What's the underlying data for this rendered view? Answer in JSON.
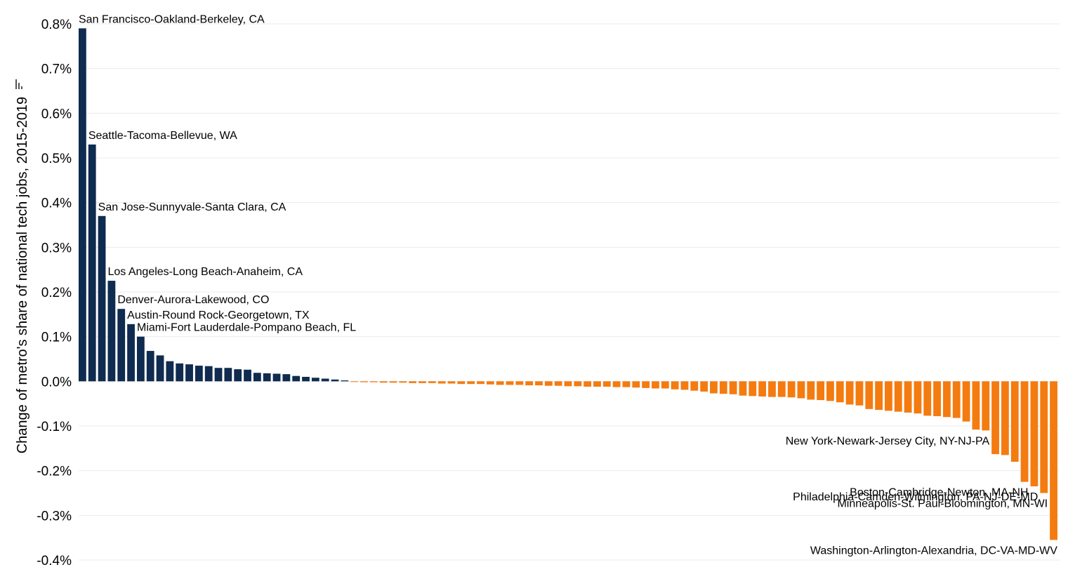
{
  "chart_data": {
    "type": "bar",
    "ylabel": "Change of metro's share of national tech jobs, 2015-2019",
    "ylim": [
      -0.4,
      0.8
    ],
    "y_ticks": [
      0.8,
      0.7,
      0.6,
      0.5,
      0.4,
      0.3,
      0.2,
      0.1,
      0.0,
      -0.1,
      -0.2,
      -0.3,
      -0.4
    ],
    "y_tick_labels": [
      "0.8%",
      "0.7%",
      "0.6%",
      "0.5%",
      "0.4%",
      "0.3%",
      "0.2%",
      "0.1%",
      "0.0%",
      "-0.1%",
      "-0.2%",
      "-0.3%",
      "-0.4%"
    ],
    "grid": true,
    "colors": {
      "positive": "#0f2b4f",
      "negative": "#f47b10",
      "grid": "#ebebeb"
    },
    "values": [
      0.79,
      0.53,
      0.37,
      0.225,
      0.162,
      0.128,
      0.1,
      0.068,
      0.058,
      0.045,
      0.04,
      0.038,
      0.035,
      0.034,
      0.03,
      0.03,
      0.027,
      0.026,
      0.019,
      0.018,
      0.017,
      0.016,
      0.012,
      0.01,
      0.008,
      0.006,
      0.004,
      0.002,
      -0.001,
      -0.002,
      -0.002,
      -0.003,
      -0.003,
      -0.003,
      -0.004,
      -0.004,
      -0.004,
      -0.005,
      -0.005,
      -0.006,
      -0.006,
      -0.006,
      -0.007,
      -0.008,
      -0.008,
      -0.008,
      -0.009,
      -0.009,
      -0.01,
      -0.01,
      -0.011,
      -0.011,
      -0.012,
      -0.012,
      -0.012,
      -0.013,
      -0.013,
      -0.014,
      -0.015,
      -0.016,
      -0.016,
      -0.018,
      -0.019,
      -0.021,
      -0.023,
      -0.027,
      -0.028,
      -0.029,
      -0.032,
      -0.033,
      -0.034,
      -0.035,
      -0.035,
      -0.036,
      -0.038,
      -0.041,
      -0.042,
      -0.044,
      -0.047,
      -0.052,
      -0.054,
      -0.062,
      -0.064,
      -0.066,
      -0.068,
      -0.07,
      -0.072,
      -0.077,
      -0.078,
      -0.08,
      -0.082,
      -0.09,
      -0.108,
      -0.11,
      -0.163,
      -0.165,
      -0.18,
      -0.225,
      -0.235,
      -0.25,
      -0.355
    ],
    "annotations": [
      {
        "index": 0,
        "text": "San Francisco-Oakland-Berkeley, CA",
        "anchor": "start"
      },
      {
        "index": 1,
        "text": "Seattle-Tacoma-Bellevue, WA",
        "anchor": "start"
      },
      {
        "index": 2,
        "text": "San Jose-Sunnyvale-Santa Clara, CA",
        "anchor": "start"
      },
      {
        "index": 3,
        "text": "Los Angeles-Long Beach-Anaheim, CA",
        "anchor": "start"
      },
      {
        "index": 4,
        "text": "Denver-Aurora-Lakewood, CO",
        "anchor": "start"
      },
      {
        "index": 5,
        "text": "Austin-Round Rock-Georgetown, TX",
        "anchor": "start"
      },
      {
        "index": 6,
        "text": "Miami-Fort Lauderdale-Pompano Beach, FL",
        "anchor": "start"
      },
      {
        "index": 93,
        "text": "New York-Newark-Jersey City, NY-NJ-PA",
        "anchor": "end"
      },
      {
        "index": 97,
        "text": "Boston-Cambridge-Newton, MA-NH",
        "anchor": "end"
      },
      {
        "index": 98,
        "text": "Philadelphia-Camden-Wilmington, PA-NJ-DE-MD",
        "anchor": "end"
      },
      {
        "index": 99,
        "text": "Minneapolis-St. Paul-Bloomington, MN-WI",
        "anchor": "end"
      },
      {
        "index": 100,
        "text": "Washington-Arlington-Alexandria, DC-VA-MD-WV",
        "anchor": "end"
      }
    ]
  }
}
